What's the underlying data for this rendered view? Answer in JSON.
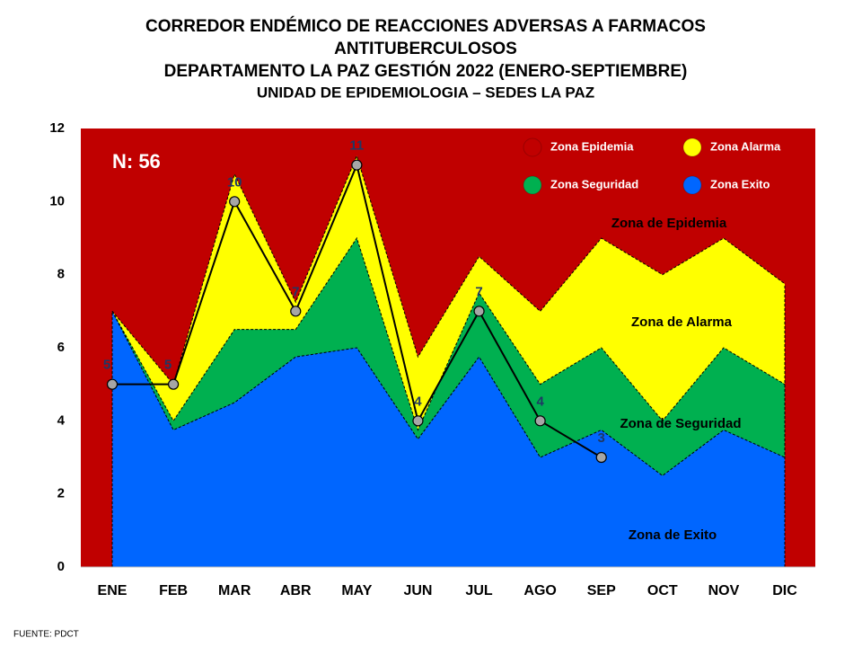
{
  "chart_data": {
    "type": "area",
    "title_lines": [
      "CORREDOR ENDÉMICO DE REACCIONES ADVERSAS A FARMACOS",
      "ANTITUBERCULOSOS",
      "DEPARTAMENTO LA PAZ GESTIÓN 2022 (ENERO-SEPTIEMBRE)",
      "UNIDAD DE EPIDEMIOLOGIA – SEDES LA PAZ"
    ],
    "categories": [
      "ENE",
      "FEB",
      "MAR",
      "ABR",
      "MAY",
      "JUN",
      "JUL",
      "AGO",
      "SEP",
      "OCT",
      "NOV",
      "DIC"
    ],
    "background_zone": {
      "name": "Zona Epidemia",
      "color": "#c00000"
    },
    "series": [
      {
        "name": "Zona Alarma",
        "color": "#ffff00",
        "values": [
          7,
          5,
          10.75,
          7.25,
          11.25,
          5.75,
          8.5,
          7,
          9,
          8,
          9,
          7.75
        ]
      },
      {
        "name": "Zona Seguridad",
        "color": "#00b050",
        "values": [
          7,
          4,
          6.5,
          6.5,
          9,
          3.75,
          7.5,
          5,
          6,
          4,
          6,
          5
        ]
      },
      {
        "name": "Zona Exito",
        "color": "#0066ff",
        "values": [
          7,
          3.75,
          4.5,
          5.75,
          6,
          3.5,
          5.75,
          3,
          3.75,
          2.5,
          3.75,
          3
        ]
      }
    ],
    "cases": {
      "color": "#a6a6a6",
      "line_color": "#000000",
      "label_color": "#1f3864",
      "values": [
        5,
        5,
        10,
        7,
        11,
        4,
        7,
        4,
        3,
        null,
        null,
        null
      ]
    },
    "annotations": [
      "N: 56",
      "Zona de Epidemia",
      "Zona de Alarma",
      "Zona de Seguridad",
      "Zona de Exito"
    ],
    "ylim": [
      0,
      12
    ],
    "yticks": [
      0,
      2,
      4,
      6,
      8,
      10,
      12
    ],
    "source": "FUENTE:   PDCT"
  }
}
